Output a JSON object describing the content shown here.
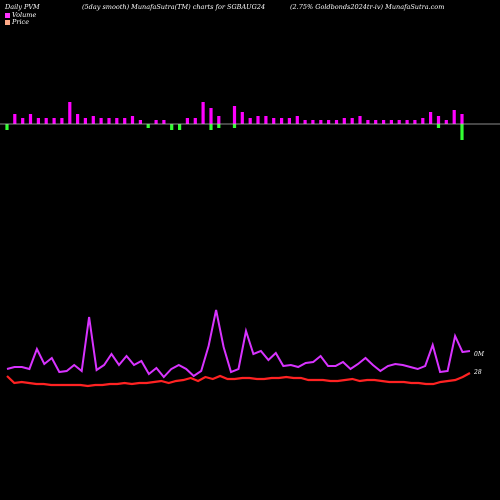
{
  "header": {
    "left": "Daily PVM",
    "mid": "(5day smooth) MunafaSutra(TM) charts for SGBAUG24",
    "right": "(2.75% Goldbonds2024tr-iv) MunafaSutra.com"
  },
  "legend": {
    "volume_label": "Volume",
    "price_label": "Price",
    "volume_color": "#ff33ff",
    "price_color": "#ffaa88"
  },
  "colors": {
    "background": "#000000",
    "baseline": "#bbbbbb",
    "volume_up": "#ff00ff",
    "volume_down": "#33ff33",
    "volume_line": "#d833ff",
    "price_line": "#ff2222"
  },
  "chart_data": {
    "type": "line",
    "volume_bars": {
      "up_values": [
        0,
        2.5,
        1.5,
        2.5,
        1.5,
        1.5,
        1.5,
        1.5,
        5.5,
        2.5,
        1.5,
        2,
        1.5,
        1.5,
        1.5,
        1.5,
        2,
        1,
        0,
        1,
        1,
        0,
        0,
        1.5,
        1.5,
        5.5,
        4,
        2,
        0,
        4.5,
        3,
        1.5,
        2,
        2,
        1.5,
        1.5,
        1.5,
        2,
        1,
        1,
        1,
        1,
        1,
        1.5,
        1.5,
        2,
        1,
        1,
        1,
        1,
        1,
        1,
        1,
        1.5,
        3,
        2,
        1,
        3.5,
        2.5
      ],
      "down_values": [
        -1.5,
        0,
        0,
        0,
        0,
        0,
        0,
        0,
        0,
        0,
        0,
        0,
        0,
        0,
        0,
        0,
        0,
        0,
        -1,
        0,
        0,
        -1.5,
        -1.5,
        0,
        0,
        0,
        -1.5,
        -1,
        0,
        -1,
        0,
        0,
        0,
        0,
        0,
        0,
        0,
        0,
        0,
        0,
        0,
        0,
        0,
        0,
        0,
        0,
        0,
        0,
        0,
        0,
        0,
        0,
        0,
        0,
        0,
        -1,
        0,
        0,
        -4
      ]
    },
    "series": [
      {
        "values": [
          31,
          33,
          33,
          31,
          51,
          36,
          42,
          28,
          29,
          35,
          29,
          83,
          30,
          35,
          46,
          35,
          44,
          35,
          39,
          26,
          32,
          23,
          31,
          35,
          31,
          24,
          29,
          54,
          90,
          53,
          28,
          31,
          69,
          46,
          49,
          40,
          47,
          34,
          35,
          33,
          37,
          38,
          44,
          34,
          34,
          38,
          31,
          36,
          42,
          35,
          29,
          34,
          36,
          35,
          33,
          31,
          34,
          55,
          28,
          29,
          64,
          48,
          49
        ]
      },
      {
        "values": [
          26,
          19,
          20,
          19,
          18,
          18,
          17,
          17,
          17,
          17,
          17,
          16,
          17,
          17,
          18,
          18,
          19,
          18,
          19,
          19,
          20,
          21,
          19,
          21,
          22,
          24,
          21,
          25,
          23,
          26,
          23,
          23,
          24,
          24,
          23,
          23,
          24,
          24,
          25,
          24,
          24,
          22,
          22,
          22,
          21,
          21,
          22,
          23,
          21,
          22,
          22,
          21,
          20,
          20,
          20,
          19,
          19,
          18,
          18,
          20,
          21,
          22,
          25,
          29
        ]
      }
    ],
    "annotations": [
      "0M",
      "28"
    ]
  }
}
